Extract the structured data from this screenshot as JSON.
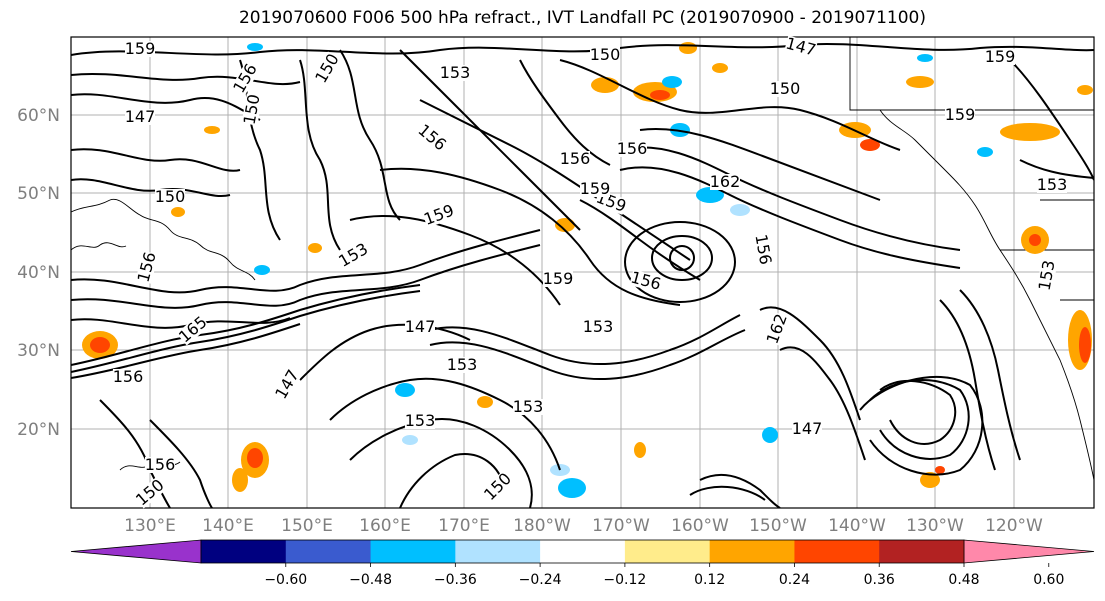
{
  "title": "2019070600 F006 500 hPa refract., IVT Landfall PC (2019070900 - 2019071100)",
  "lat_labels": [
    "60°N",
    "50°N",
    "40°N",
    "30°N",
    "20°N"
  ],
  "lon_labels": [
    "130°E",
    "140°E",
    "150°E",
    "160°E",
    "170°E",
    "180°W",
    "170°W",
    "160°W",
    "150°W",
    "140°W",
    "130°W",
    "120°W"
  ],
  "colorbar": {
    "colors": [
      "#9932cc",
      "#000080",
      "#3a5bcf",
      "#00bfff",
      "#b0e2ff",
      "#ffffff",
      "#ffec8b",
      "#ffa500",
      "#ff4500",
      "#b22222",
      "#ff88aa"
    ],
    "tick_labels": [
      "−0.60",
      "−0.48",
      "−0.36",
      "−0.24",
      "−0.12",
      "0.12",
      "0.24",
      "0.36",
      "0.48",
      "0.60"
    ]
  },
  "contour_labels": [
    "159",
    "156",
    "153",
    "150",
    "147",
    "165",
    "162",
    "159",
    "156",
    "153",
    "150",
    "147",
    "159",
    "156",
    "153",
    "150",
    "156",
    "153",
    "150",
    "159",
    "156",
    "153",
    "150",
    "147",
    "156",
    "159",
    "162",
    "156",
    "153",
    "147",
    "159",
    "156",
    "150",
    "153",
    "156",
    "159",
    "153",
    "150",
    "147"
  ]
}
